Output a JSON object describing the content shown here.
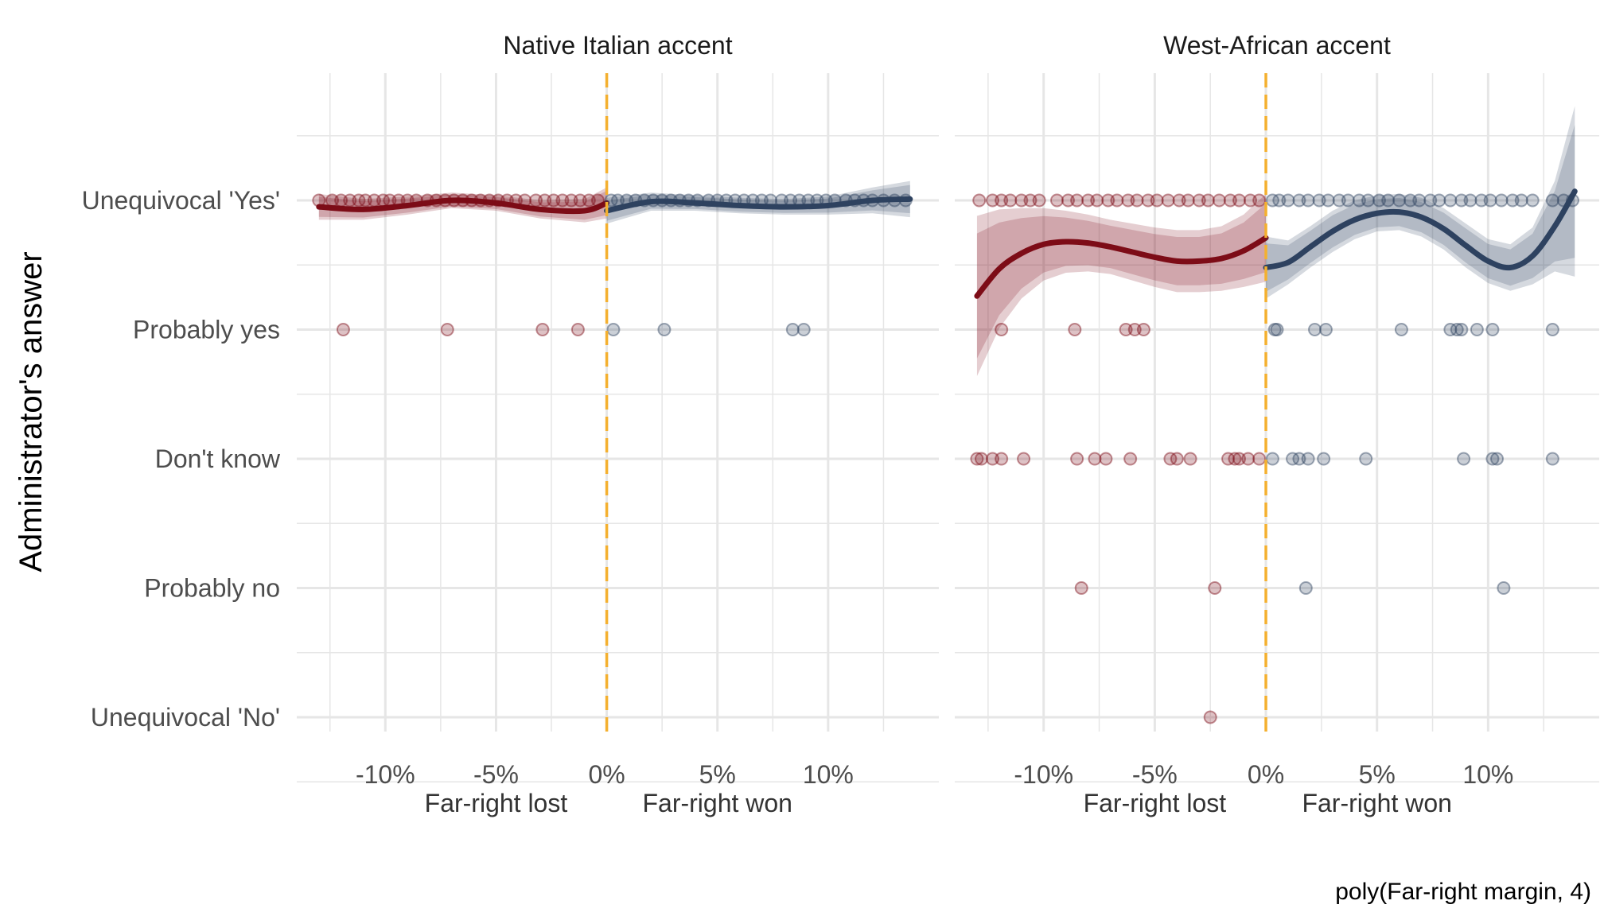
{
  "chart_data": {
    "type": "scatter",
    "ylabel": "Administrator's answer",
    "caption": "poly(Far-right margin, 4)",
    "y_categories": [
      "Unequivocal 'Yes'",
      "Probably yes",
      "Don't know",
      "Probably no",
      "Unequivocal 'No'"
    ],
    "x_ticks": [
      -10,
      -5,
      0,
      5,
      10
    ],
    "x_tick_labels": [
      "-10%",
      "-5%",
      "0%",
      "5%",
      "10%"
    ],
    "x_range": [
      -14,
      15
    ],
    "side_labels": {
      "lost": "Far-right lost",
      "won": "Far-right won"
    },
    "threshold": 0,
    "colors": {
      "lost": "#7d0c17",
      "won": "#2e4260",
      "threshold": "#f4b02f",
      "grid": "#e6e6e6"
    },
    "grid": true,
    "panels": [
      {
        "title": "Native Italian accent",
        "points": [
          {
            "answer": 1,
            "x": [
              -13,
              -12.4,
              -12,
              -11.6,
              -11.2,
              -10.9,
              -10.5,
              -10.1,
              -9.8,
              -9.4,
              -9,
              -8.6,
              -8.1,
              -7.7,
              -7.3,
              -6.9,
              -6.5,
              -6.1,
              -5.7,
              -5.3,
              -4.9,
              -4.5,
              -4.1,
              -3.7,
              -3.2,
              -2.8,
              -2.4,
              -2,
              -1.6,
              -1.2,
              -0.8,
              -0.4,
              0.2,
              0.5,
              0.9,
              1.3,
              1.7,
              2.1,
              2.5,
              2.9,
              3.3,
              3.7,
              4.1,
              4.6,
              5,
              5.4,
              5.8,
              6.2,
              6.6,
              7,
              7.4,
              7.9,
              8.3,
              8.7,
              9.1,
              9.5,
              9.9,
              10.3,
              10.8,
              11.2,
              11.6,
              12,
              12.5,
              13,
              13.5
            ]
          },
          {
            "answer": 2,
            "x": [
              -11.9,
              -7.2,
              -2.9,
              -1.3,
              0.3,
              2.6,
              8.4,
              8.9
            ]
          }
        ],
        "fit_lost": {
          "x": [
            -13,
            -11,
            -9,
            -7,
            -5,
            -3,
            -1,
            0
          ],
          "y": [
            1.05,
            1.07,
            1.04,
            1.0,
            1.02,
            1.07,
            1.08,
            1.02
          ],
          "ci": [
            0.1,
            0.08,
            0.07,
            0.06,
            0.06,
            0.07,
            0.09,
            0.12
          ]
        },
        "fit_won": {
          "x": [
            0,
            2,
            4,
            6,
            8,
            10,
            12,
            13.7
          ],
          "y": [
            1.08,
            1.01,
            1.02,
            1.04,
            1.05,
            1.04,
            1.0,
            0.99
          ],
          "ci": [
            0.1,
            0.07,
            0.06,
            0.06,
            0.06,
            0.07,
            0.1,
            0.14
          ]
        }
      },
      {
        "title": "West-African accent",
        "points": [
          {
            "answer": 1,
            "x": [
              -12.9,
              -12.3,
              -11.9,
              -11.5,
              -11,
              -10.6,
              -10.2,
              -9.4,
              -8.9,
              -8.5,
              -8,
              -7.6,
              -7.1,
              -6.7,
              -6.2,
              -5.8,
              -5.3,
              -4.9,
              -4.4,
              -3.9,
              -3.5,
              -3,
              -2.6,
              -2.1,
              -1.6,
              -1.2,
              -0.7,
              -0.3,
              0.3,
              0.6,
              1,
              1.5,
              1.9,
              2.4,
              2.8,
              3.3,
              3.7,
              4.2,
              4.6,
              5.1,
              5.5,
              6,
              6.5,
              6.9,
              7.4,
              7.8,
              8.3,
              8.8,
              9.2,
              9.7,
              10.1,
              10.6,
              11.1,
              11.5,
              12,
              12.9,
              13.4,
              13.8
            ]
          },
          {
            "answer": 2,
            "x": [
              -11.9,
              -8.6,
              -6.3,
              -5.9,
              -5.5,
              0.4,
              0.5,
              2.2,
              2.7,
              6.1,
              8.3,
              8.6,
              8.8,
              9.5,
              10.2,
              12.9
            ]
          },
          {
            "answer": 3,
            "x": [
              -13,
              -12.8,
              -12.3,
              -11.9,
              -10.9,
              -8.5,
              -7.7,
              -7.2,
              -6.1,
              -4.3,
              -4,
              -3.4,
              -1.7,
              -1.4,
              -1.2,
              -0.8,
              -0.3,
              0.3,
              1.2,
              1.5,
              1.9,
              2.6,
              4.5,
              8.9,
              10.2,
              10.4,
              12.9
            ]
          },
          {
            "answer": 4,
            "x": [
              -8.3,
              -2.3,
              1.8,
              10.7
            ]
          },
          {
            "answer": 5,
            "x": [
              -2.5
            ]
          }
        ],
        "fit_lost": {
          "x": [
            -13,
            -12,
            -11,
            -10,
            -9,
            -8,
            -7,
            -6,
            -5,
            -4,
            -3,
            -2,
            -1,
            0
          ],
          "y": [
            1.74,
            1.53,
            1.41,
            1.34,
            1.32,
            1.33,
            1.36,
            1.4,
            1.44,
            1.47,
            1.47,
            1.45,
            1.39,
            1.29
          ],
          "ci": [
            0.62,
            0.46,
            0.35,
            0.28,
            0.24,
            0.22,
            0.21,
            0.22,
            0.23,
            0.24,
            0.24,
            0.25,
            0.28,
            0.34
          ]
        },
        "fit_won": {
          "x": [
            0,
            1,
            2,
            3,
            4,
            5,
            6,
            7,
            8,
            9,
            10,
            11,
            12,
            13,
            13.9
          ],
          "y": [
            1.52,
            1.48,
            1.36,
            1.24,
            1.15,
            1.1,
            1.09,
            1.13,
            1.22,
            1.35,
            1.47,
            1.52,
            1.43,
            1.2,
            0.93
          ],
          "ci": [
            0.24,
            0.17,
            0.16,
            0.16,
            0.15,
            0.14,
            0.14,
            0.15,
            0.16,
            0.17,
            0.17,
            0.18,
            0.22,
            0.35,
            0.66
          ]
        }
      }
    ]
  }
}
